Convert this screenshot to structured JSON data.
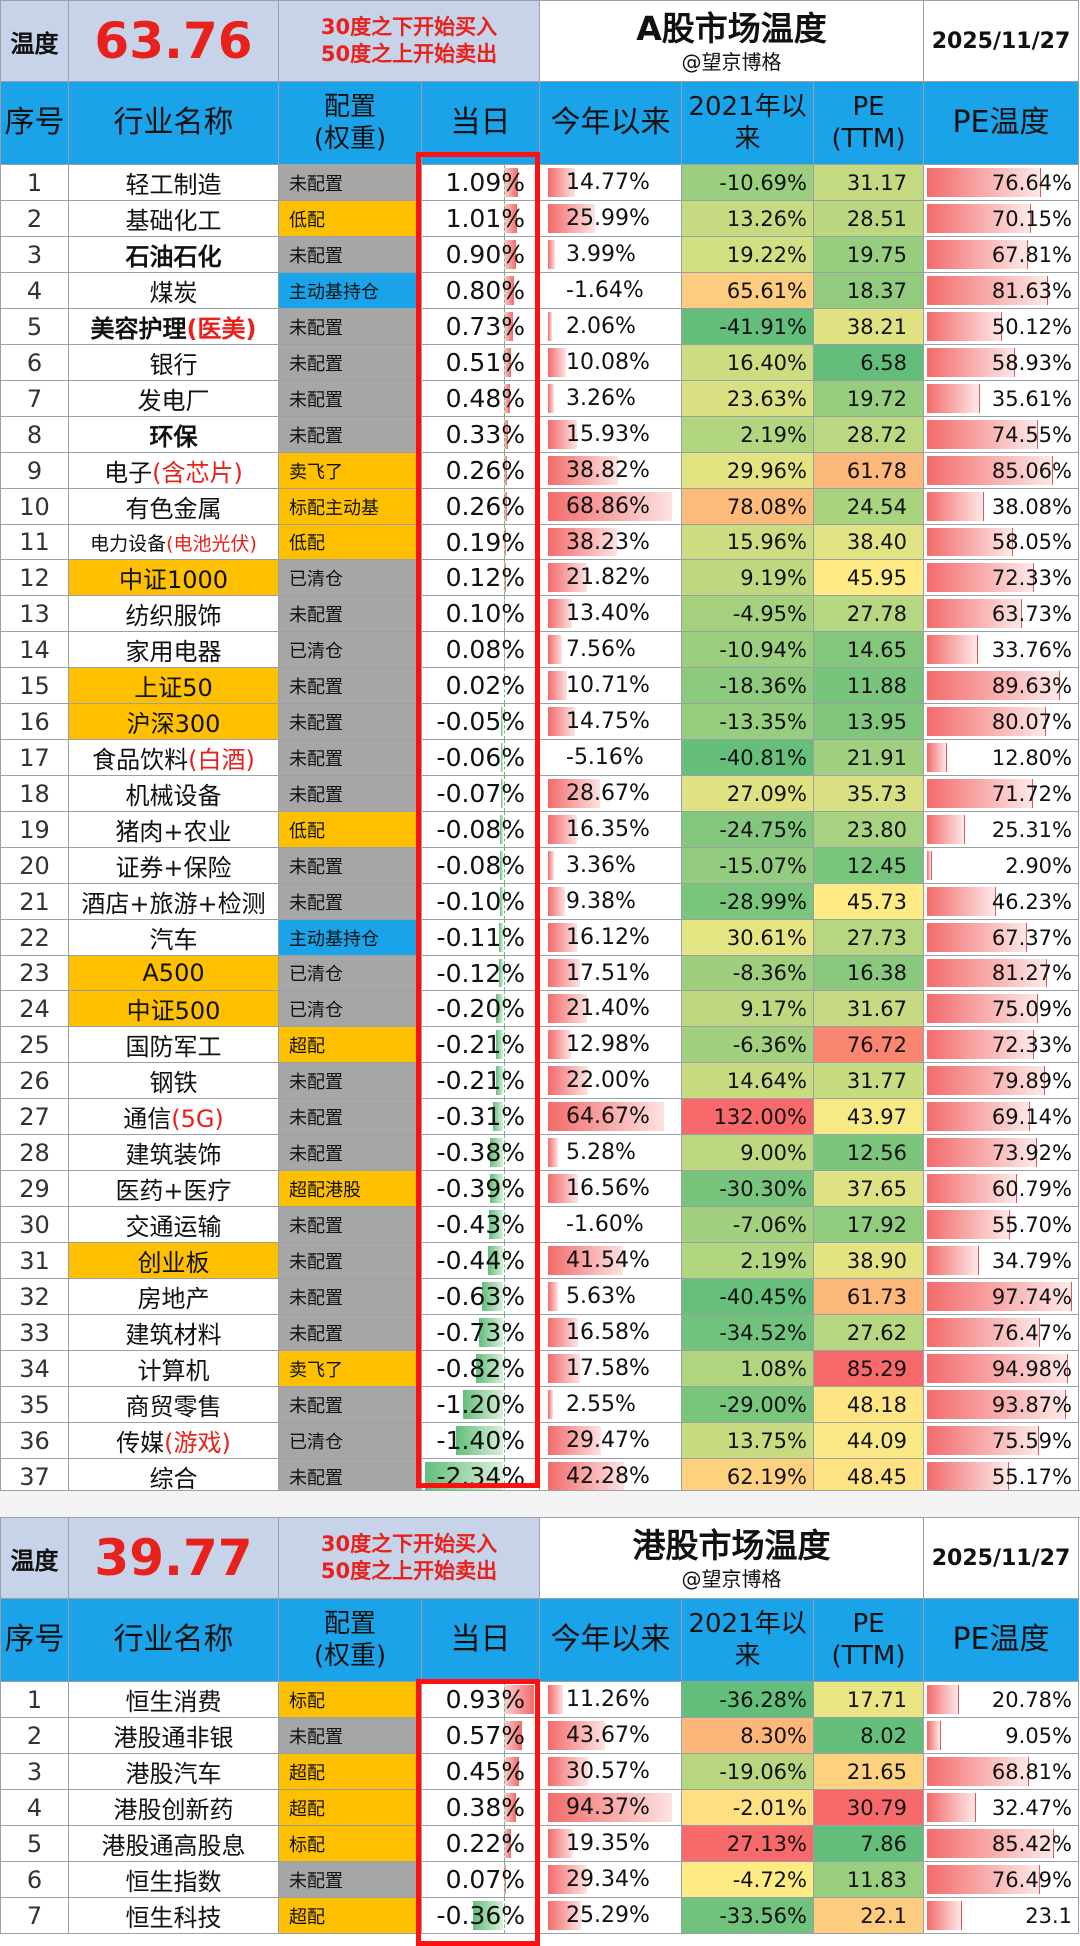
{
  "a_share": {
    "temp_label": "温度",
    "temp_value": "63.76",
    "note_line1": "30度之下开始买入",
    "note_line2": "50度之上开始卖出",
    "title": "A股市场温度",
    "subtitle": "@望京博格",
    "date": "2025/11/27",
    "headers": [
      "序号",
      "行业名称",
      "配置\n(权重)",
      "当日",
      "今年以来",
      "2021年以\n来",
      "PE\n(TTM)",
      "PE温度"
    ],
    "rows": [
      {
        "idx": "1",
        "name": "轻工制造",
        "cfg": "未配置",
        "daily": "1.09%",
        "ytd": "14.77%",
        "since": "-10.69%",
        "pe": "31.17",
        "pet": "76.64%"
      },
      {
        "idx": "2",
        "name": "基础化工",
        "cfg": "低配",
        "daily": "1.01%",
        "ytd": "25.99%",
        "since": "13.26%",
        "pe": "28.51",
        "pet": "70.15%"
      },
      {
        "idx": "3",
        "name": "石油石化",
        "cfg": "未配置",
        "daily": "0.90%",
        "ytd": "3.99%",
        "since": "19.22%",
        "pe": "19.75",
        "pet": "67.81%"
      },
      {
        "idx": "4",
        "name": "煤炭",
        "cfg": "主动基持仓",
        "daily": "0.80%",
        "ytd": "-1.64%",
        "since": "65.61%",
        "pe": "18.37",
        "pet": "81.63%"
      },
      {
        "idx": "5",
        "name": "美容护理",
        "name_red": "(医美)",
        "cfg": "未配置",
        "daily": "0.73%",
        "ytd": "2.06%",
        "since": "-41.91%",
        "pe": "38.21",
        "pet": "50.12%"
      },
      {
        "idx": "6",
        "name": "银行",
        "cfg": "未配置",
        "daily": "0.51%",
        "ytd": "10.08%",
        "since": "16.40%",
        "pe": "6.58",
        "pet": "58.93%"
      },
      {
        "idx": "7",
        "name": "发电厂",
        "cfg": "未配置",
        "daily": "0.48%",
        "ytd": "3.26%",
        "since": "23.63%",
        "pe": "19.72",
        "pet": "35.61%"
      },
      {
        "idx": "8",
        "name": "环保",
        "cfg": "未配置",
        "daily": "0.33%",
        "ytd": "15.93%",
        "since": "2.19%",
        "pe": "28.72",
        "pet": "74.55%"
      },
      {
        "idx": "9",
        "name": "电子",
        "name_red": "(含芯片)",
        "cfg": "卖飞了",
        "daily": "0.26%",
        "ytd": "38.82%",
        "since": "29.96%",
        "pe": "61.78",
        "pet": "85.06%"
      },
      {
        "idx": "10",
        "name": "有色金属",
        "cfg": "标配主动基",
        "daily": "0.26%",
        "ytd": "68.86%",
        "since": "78.08%",
        "pe": "24.54",
        "pet": "38.08%"
      },
      {
        "idx": "11",
        "name": "电力设备",
        "name_red": "(电池光伏)",
        "cfg": "低配",
        "daily": "0.19%",
        "ytd": "38.23%",
        "since": "15.96%",
        "pe": "38.40",
        "pet": "58.05%"
      },
      {
        "idx": "12",
        "name": "中证1000",
        "cfg": "已清仓",
        "daily": "0.12%",
        "ytd": "21.82%",
        "since": "9.19%",
        "pe": "45.95",
        "pet": "72.33%"
      },
      {
        "idx": "13",
        "name": "纺织服饰",
        "cfg": "未配置",
        "daily": "0.10%",
        "ytd": "13.40%",
        "since": "-4.95%",
        "pe": "27.78",
        "pet": "63.73%"
      },
      {
        "idx": "14",
        "name": "家用电器",
        "cfg": "已清仓",
        "daily": "0.08%",
        "ytd": "7.56%",
        "since": "-10.94%",
        "pe": "14.65",
        "pet": "33.76%"
      },
      {
        "idx": "15",
        "name": "上证50",
        "cfg": "未配置",
        "daily": "0.02%",
        "ytd": "10.71%",
        "since": "-18.36%",
        "pe": "11.88",
        "pet": "89.63%"
      },
      {
        "idx": "16",
        "name": "沪深300",
        "cfg": "未配置",
        "daily": "-0.05%",
        "ytd": "14.75%",
        "since": "-13.35%",
        "pe": "13.95",
        "pet": "80.07%"
      },
      {
        "idx": "17",
        "name": "食品饮料",
        "name_red": "(白酒)",
        "cfg": "未配置",
        "daily": "-0.06%",
        "ytd": "-5.16%",
        "since": "-40.81%",
        "pe": "21.91",
        "pet": "12.80%"
      },
      {
        "idx": "18",
        "name": "机械设备",
        "cfg": "未配置",
        "daily": "-0.07%",
        "ytd": "28.67%",
        "since": "27.09%",
        "pe": "35.73",
        "pet": "71.72%"
      },
      {
        "idx": "19",
        "name": "猪肉+农业",
        "cfg": "低配",
        "daily": "-0.08%",
        "ytd": "16.35%",
        "since": "-24.75%",
        "pe": "23.80",
        "pet": "25.31%"
      },
      {
        "idx": "20",
        "name": "证券+保险",
        "cfg": "未配置",
        "daily": "-0.08%",
        "ytd": "3.36%",
        "since": "-15.07%",
        "pe": "12.45",
        "pet": "2.90%"
      },
      {
        "idx": "21",
        "name": "酒店+旅游+检测",
        "cfg": "未配置",
        "daily": "-0.10%",
        "ytd": "9.38%",
        "since": "-28.99%",
        "pe": "45.73",
        "pet": "46.23%"
      },
      {
        "idx": "22",
        "name": "汽车",
        "cfg": "主动基持仓",
        "daily": "-0.11%",
        "ytd": "16.12%",
        "since": "30.61%",
        "pe": "27.73",
        "pet": "67.37%"
      },
      {
        "idx": "23",
        "name": "A500",
        "cfg": "已清仓",
        "daily": "-0.12%",
        "ytd": "17.51%",
        "since": "-8.36%",
        "pe": "16.38",
        "pet": "81.27%"
      },
      {
        "idx": "24",
        "name": "中证500",
        "cfg": "已清仓",
        "daily": "-0.20%",
        "ytd": "21.40%",
        "since": "9.17%",
        "pe": "31.67",
        "pet": "75.09%"
      },
      {
        "idx": "25",
        "name": "国防军工",
        "cfg": "超配",
        "daily": "-0.21%",
        "ytd": "12.98%",
        "since": "-6.36%",
        "pe": "76.72",
        "pet": "72.33%"
      },
      {
        "idx": "26",
        "name": "钢铁",
        "cfg": "未配置",
        "daily": "-0.21%",
        "ytd": "22.00%",
        "since": "14.64%",
        "pe": "31.77",
        "pet": "79.89%"
      },
      {
        "idx": "27",
        "name": "通信",
        "name_red": "(5G)",
        "cfg": "未配置",
        "daily": "-0.31%",
        "ytd": "64.67%",
        "since": "132.00%",
        "pe": "43.97",
        "pet": "69.14%"
      },
      {
        "idx": "28",
        "name": "建筑装饰",
        "cfg": "未配置",
        "daily": "-0.38%",
        "ytd": "5.28%",
        "since": "9.00%",
        "pe": "12.56",
        "pet": "73.92%"
      },
      {
        "idx": "29",
        "name": "医药+医疗",
        "cfg": "超配港股",
        "daily": "-0.39%",
        "ytd": "16.56%",
        "since": "-30.30%",
        "pe": "37.65",
        "pet": "60.79%"
      },
      {
        "idx": "30",
        "name": "交通运输",
        "cfg": "未配置",
        "daily": "-0.43%",
        "ytd": "-1.60%",
        "since": "-7.06%",
        "pe": "17.92",
        "pet": "55.70%"
      },
      {
        "idx": "31",
        "name": "创业板",
        "cfg": "未配置",
        "daily": "-0.44%",
        "ytd": "41.54%",
        "since": "2.19%",
        "pe": "38.90",
        "pet": "34.79%"
      },
      {
        "idx": "32",
        "name": "房地产",
        "cfg": "未配置",
        "daily": "-0.63%",
        "ytd": "5.63%",
        "since": "-40.45%",
        "pe": "61.73",
        "pet": "97.74%"
      },
      {
        "idx": "33",
        "name": "建筑材料",
        "cfg": "未配置",
        "daily": "-0.73%",
        "ytd": "16.58%",
        "since": "-34.52%",
        "pe": "27.62",
        "pet": "76.47%"
      },
      {
        "idx": "34",
        "name": "计算机",
        "cfg": "卖飞了",
        "daily": "-0.82%",
        "ytd": "17.58%",
        "since": "1.08%",
        "pe": "85.29",
        "pet": "94.98%"
      },
      {
        "idx": "35",
        "name": "商贸零售",
        "cfg": "未配置",
        "daily": "-1.20%",
        "ytd": "2.55%",
        "since": "-29.00%",
        "pe": "48.18",
        "pet": "93.87%"
      },
      {
        "idx": "36",
        "name": "传媒",
        "name_red": "(游戏)",
        "cfg": "已清仓",
        "daily": "-1.40%",
        "ytd": "29.47%",
        "since": "13.75%",
        "pe": "44.09",
        "pet": "75.59%"
      },
      {
        "idx": "37",
        "name": "综合",
        "cfg": "未配置",
        "daily": "-2.34%",
        "ytd": "42.28%",
        "since": "62.19%",
        "pe": "48.45",
        "pet": "55.17%"
      }
    ]
  },
  "hk_share": {
    "temp_label": "温度",
    "temp_value": "39.77",
    "note_line1": "30度之下开始买入",
    "note_line2": "50度之上开始卖出",
    "title": "港股市场温度",
    "subtitle": "@望京博格",
    "date": "2025/11/27",
    "headers": [
      "序号",
      "行业名称",
      "配置\n(权重)",
      "当日",
      "今年以来",
      "2021年以\n来",
      "PE\n(TTM)",
      "PE温度"
    ],
    "rows": [
      {
        "idx": "1",
        "name": "恒生消费",
        "cfg": "标配",
        "daily": "0.93%",
        "ytd": "11.26%",
        "since": "-36.28%",
        "pe": "17.71",
        "pet": "20.78%"
      },
      {
        "idx": "2",
        "name": "港股通非银",
        "cfg": "未配置",
        "daily": "0.57%",
        "ytd": "43.67%",
        "since": "8.30%",
        "pe": "8.02",
        "pet": "9.05%"
      },
      {
        "idx": "3",
        "name": "港股汽车",
        "cfg": "超配",
        "daily": "0.45%",
        "ytd": "30.57%",
        "since": "-19.06%",
        "pe": "21.65",
        "pet": "68.81%"
      },
      {
        "idx": "4",
        "name": "港股创新药",
        "cfg": "超配",
        "daily": "0.38%",
        "ytd": "94.37%",
        "since": "-2.01%",
        "pe": "30.79",
        "pet": "32.47%"
      },
      {
        "idx": "5",
        "name": "港股通高股息",
        "cfg": "标配",
        "daily": "0.22%",
        "ytd": "19.35%",
        "since": "27.13%",
        "pe": "7.86",
        "pet": "85.42%"
      },
      {
        "idx": "6",
        "name": "恒生指数",
        "cfg": "未配置",
        "daily": "0.07%",
        "ytd": "29.34%",
        "since": "-4.72%",
        "pe": "11.83",
        "pet": "76.49%"
      },
      {
        "idx": "7",
        "name": "恒生科技",
        "cfg": "超配",
        "daily": "-0.36%",
        "ytd": "25.29%",
        "since": "-33.56%",
        "pe": "22.1",
        "pet": "23.1"
      }
    ]
  },
  "colors": {
    "header_blue": "#1aa3e8",
    "temp_bg": "#c7d3e8",
    "highlight_red": "#e8211c",
    "cfg_gray": "#a6a6a6",
    "cfg_orange": "#ffc000",
    "cfg_blue": "#1aa3e8",
    "box_red": "#ff1111",
    "pos_bar": "#f26b6b",
    "neg_bar": "#63be7b"
  }
}
